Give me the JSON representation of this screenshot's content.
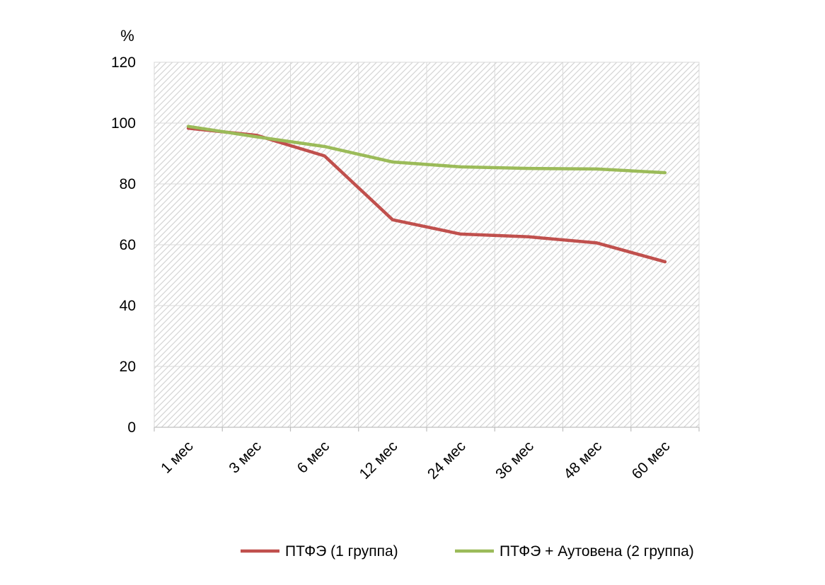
{
  "chart_data": {
    "type": "line",
    "ylabel": "%",
    "xlabel": "",
    "ylim": [
      0,
      120
    ],
    "yticks": [
      "0",
      "20",
      "40",
      "60",
      "80",
      "100",
      "120"
    ],
    "categories": [
      "1 мес",
      "3 мес",
      "6 мес",
      "12 мес",
      "24 мес",
      "36 мес",
      "48 мес",
      "60 мес"
    ],
    "grid": true,
    "legend_position": "bottom",
    "series": [
      {
        "name": "ПТФЭ (1 группа)",
        "color": "#C0504D",
        "values": [
          98.3,
          96.0,
          89.2,
          68.2,
          63.5,
          62.6,
          60.6,
          54.4
        ]
      },
      {
        "name": "ПТФЭ + Аутовена (2 группа)",
        "color": "#9BBB59",
        "values": [
          98.9,
          95.5,
          92.3,
          87.2,
          85.6,
          85.1,
          84.9,
          83.7
        ]
      }
    ]
  }
}
